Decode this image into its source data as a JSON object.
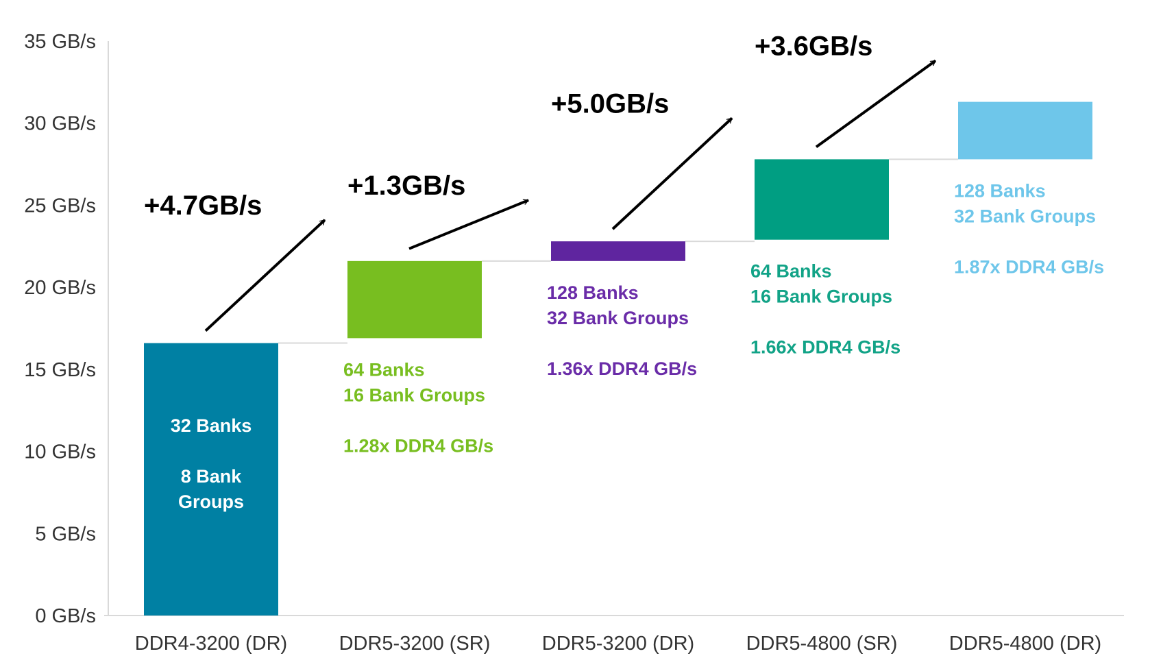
{
  "chart_data": {
    "type": "bar",
    "subtype": "waterfall",
    "title": "",
    "xlabel": "",
    "ylabel": "",
    "ylim": [
      0,
      35
    ],
    "yticks": [
      0,
      5,
      10,
      15,
      20,
      25,
      30,
      35
    ],
    "ytick_unit": "GB/s",
    "grid": false,
    "categories": [
      "DDR4-3200 (DR)",
      "DDR5-3200 (SR)",
      "DDR5-3200 (DR)",
      "DDR5-4800 (SR)",
      "DDR5-4800 (DR)"
    ],
    "bars": [
      {
        "category": "DDR4-3200 (DR)",
        "start": 0,
        "end": 16.6,
        "color": "#0080a3",
        "labels": [
          "32 Banks",
          "",
          "8 Bank",
          "Groups"
        ],
        "label_color": "#ffffff"
      },
      {
        "category": "DDR5-3200 (SR)",
        "start": 16.9,
        "end": 21.6,
        "color": "#78be20",
        "labels": [
          "64 Banks",
          "16 Bank Groups",
          "",
          "1.28x DDR4 GB/s"
        ],
        "label_color": "#78be20"
      },
      {
        "category": "DDR5-3200 (DR)",
        "start": 21.6,
        "end": 22.8,
        "color": "#5f259f",
        "labels": [
          "128 Banks",
          "32 Bank Groups",
          "",
          "1.36x DDR4 GB/s"
        ],
        "label_color": "#6a2ca8"
      },
      {
        "category": "DDR5-4800 (SR)",
        "start": 22.9,
        "end": 27.8,
        "color": "#009e82",
        "labels": [
          "64 Banks",
          "16 Bank Groups",
          "",
          "1.66x DDR4 GB/s"
        ],
        "label_color": "#12a387"
      },
      {
        "category": "DDR5-4800 (DR)",
        "start": 27.8,
        "end": 31.3,
        "color": "#6ec6ea",
        "labels": [
          "128 Banks",
          "32 Bank Groups",
          "",
          "1.87x DDR4 GB/s"
        ],
        "label_color": "#6ec6ea"
      }
    ],
    "annotations": [
      {
        "text": "+4.7GB/s",
        "from": 0,
        "to": 1
      },
      {
        "text": "+1.3GB/s",
        "from": 1,
        "to": 2
      },
      {
        "text": "+5.0GB/s",
        "from": 2,
        "to": 3
      },
      {
        "text": "+3.6GB/s",
        "from": 3,
        "to": 4
      }
    ]
  }
}
